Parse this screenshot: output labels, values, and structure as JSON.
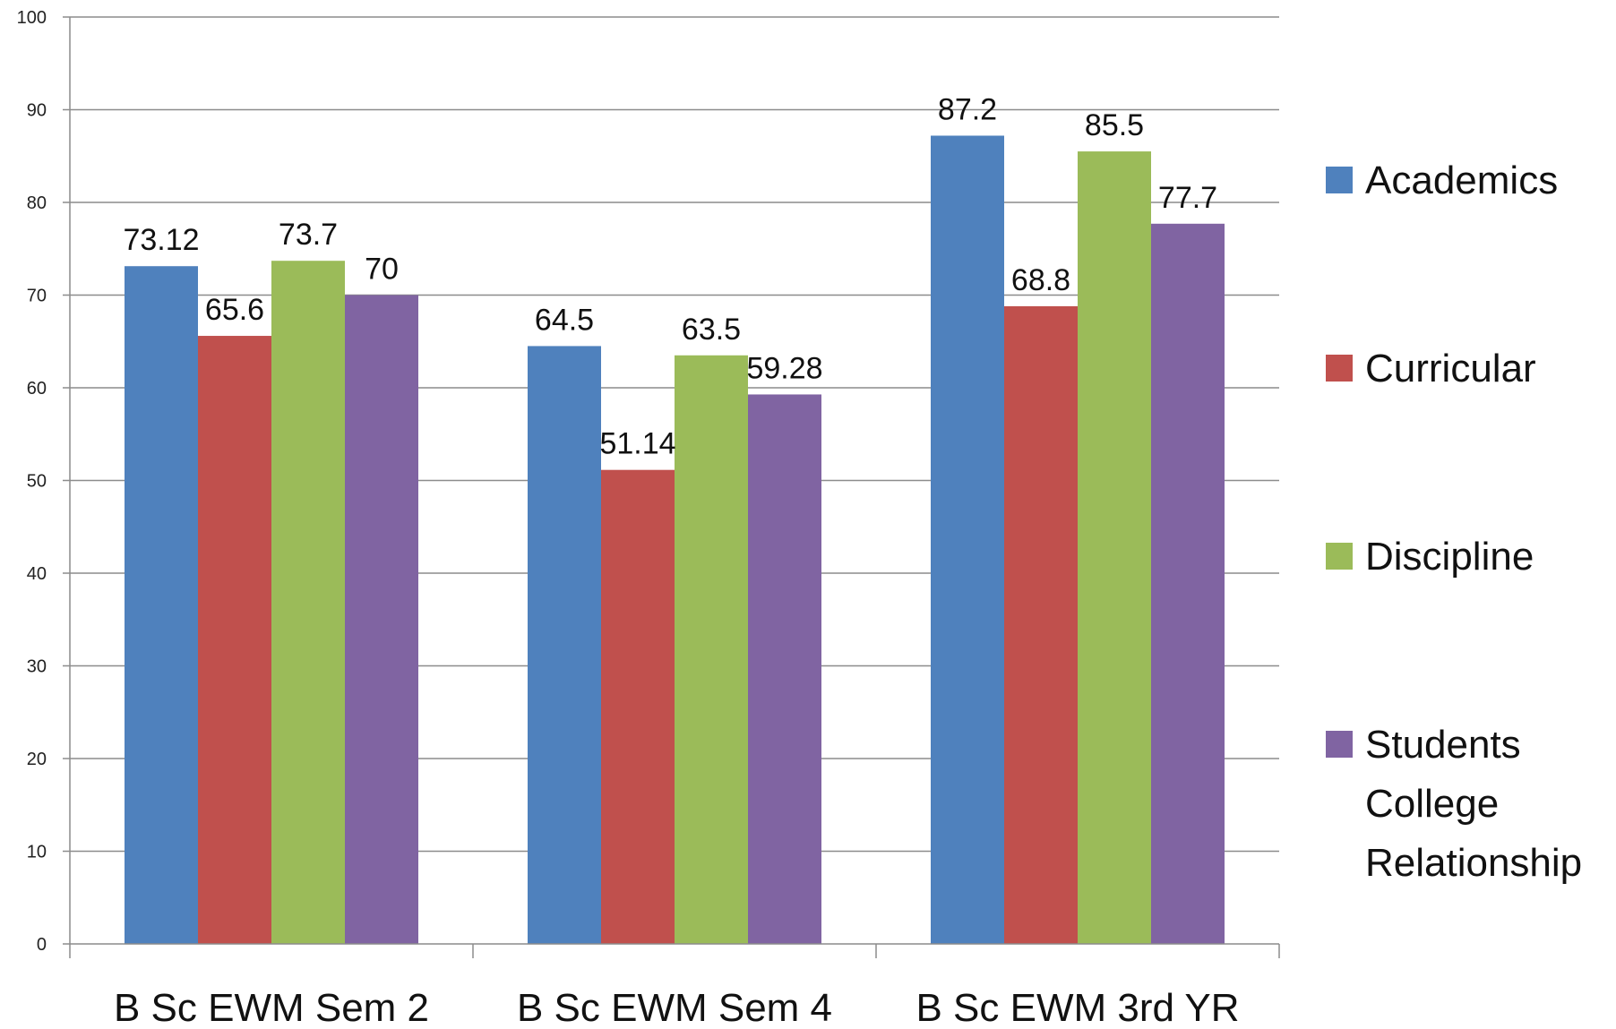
{
  "chart_data": {
    "type": "bar",
    "title": "",
    "xlabel": "",
    "ylabel": "",
    "ylim": [
      0,
      100
    ],
    "yticks": [
      0,
      10,
      20,
      30,
      40,
      50,
      60,
      70,
      80,
      90,
      100
    ],
    "grid": true,
    "legend_position": "right",
    "categories": [
      "B Sc EWM Sem 2",
      "B Sc EWM Sem 4",
      "B Sc EWM 3rd YR"
    ],
    "series": [
      {
        "name": "Academics",
        "color": "#4F81BD",
        "values": [
          73.12,
          64.5,
          87.2
        ],
        "labels": [
          "73.12",
          "64.5",
          "87.2"
        ]
      },
      {
        "name": "Curricular",
        "color": "#C0504D",
        "values": [
          65.6,
          51.14,
          68.8
        ],
        "labels": [
          "65.6",
          "51.14",
          "68.8"
        ]
      },
      {
        "name": "Discipline",
        "color": "#9BBB59",
        "values": [
          73.7,
          63.5,
          85.5
        ],
        "labels": [
          "73.7",
          "63.5",
          "85.5"
        ]
      },
      {
        "name": "Students College Relationship",
        "color": "#8064A2",
        "values": [
          70,
          59.28,
          77.7
        ],
        "labels": [
          "70",
          "59.28",
          "77.7"
        ]
      }
    ]
  }
}
